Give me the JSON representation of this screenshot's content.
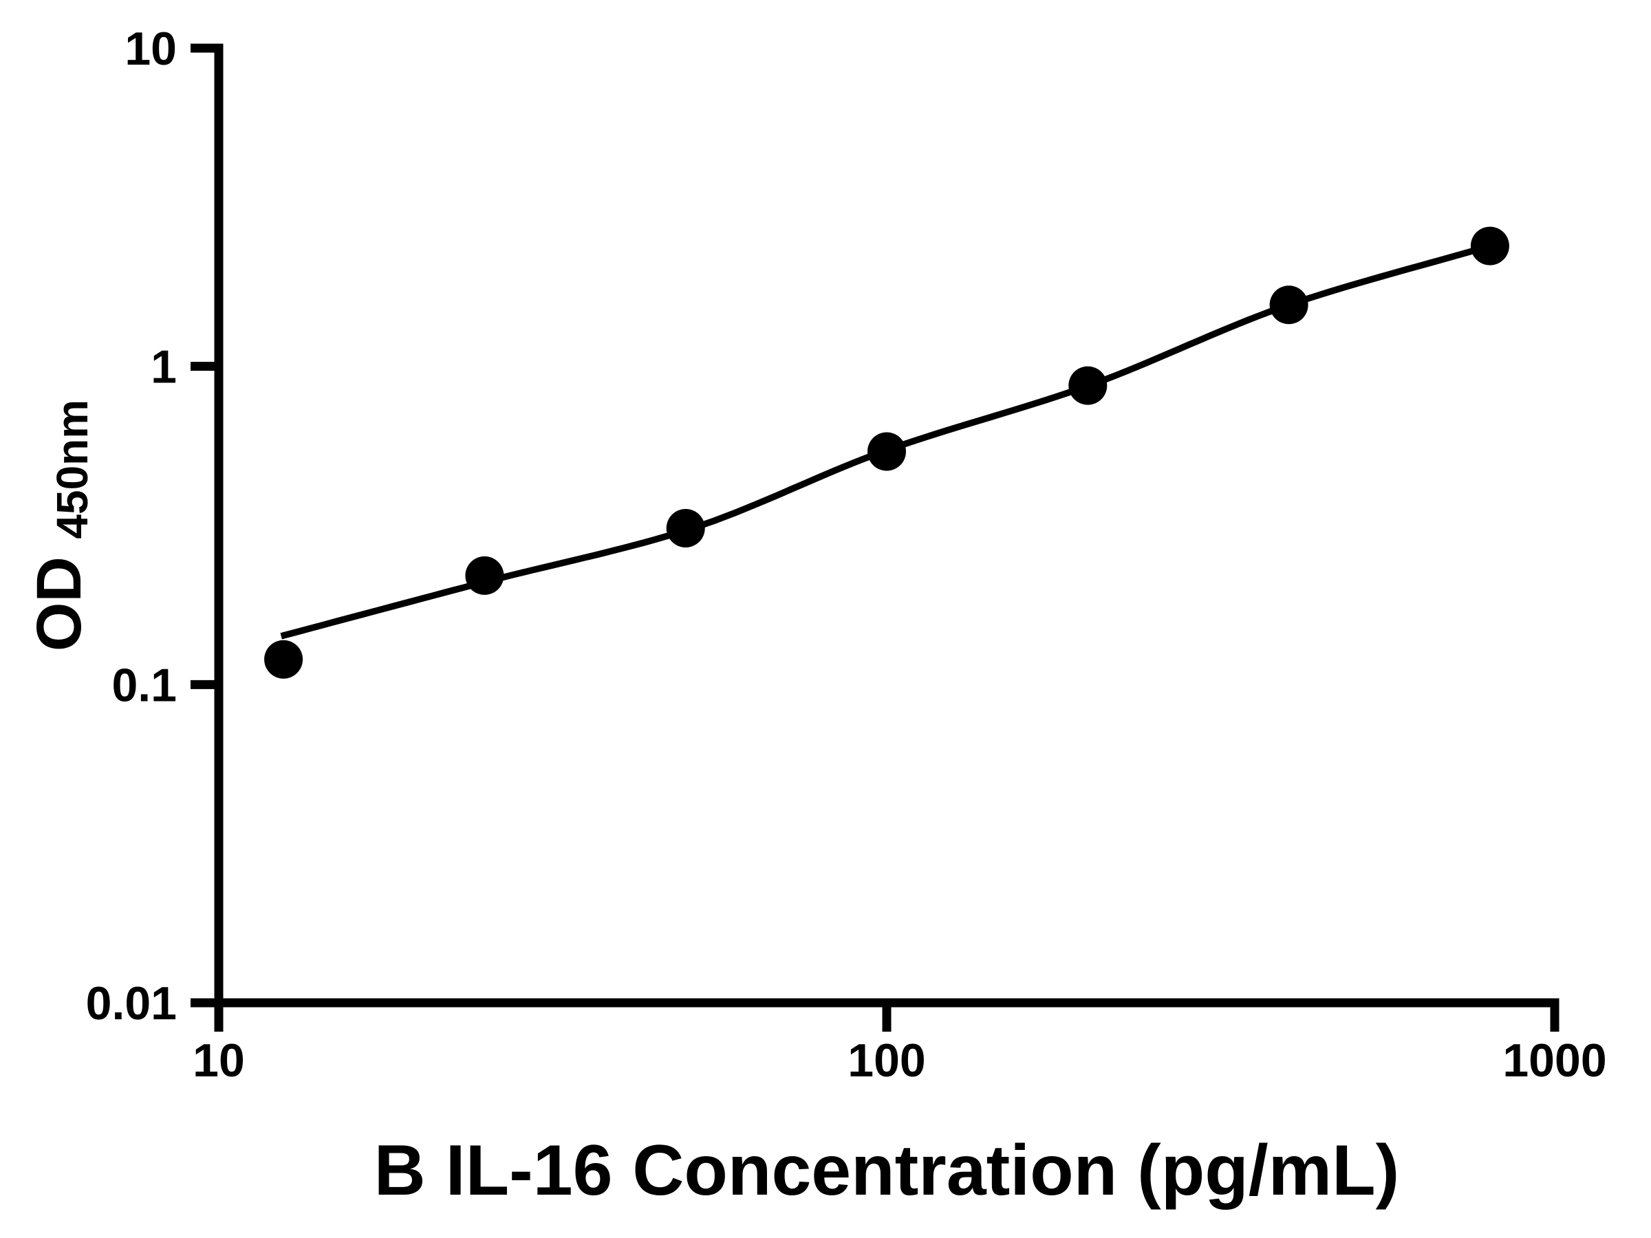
{
  "chart_data": {
    "type": "scatter",
    "title": "",
    "xlabel": "B IL-16 Concentration (pg/mL)",
    "ylabel_main": "OD",
    "ylabel_sub": "450nm",
    "x_scale": "log",
    "y_scale": "log",
    "xlim": [
      10,
      1000
    ],
    "ylim": [
      0.01,
      10
    ],
    "x_ticks": [
      {
        "value": 10,
        "label": "10"
      },
      {
        "value": 100,
        "label": "100"
      },
      {
        "value": 1000,
        "label": "1000"
      }
    ],
    "y_ticks": [
      {
        "value": 10,
        "label": "10"
      },
      {
        "value": 1,
        "label": "1"
      },
      {
        "value": 0.1,
        "label": "0.1"
      },
      {
        "value": 0.01,
        "label": "0.01"
      }
    ],
    "grid": false,
    "legend": false,
    "colors": {
      "points": "#000000",
      "curve": "#000000",
      "axis": "#000000",
      "background": "#ffffff"
    },
    "series": [
      {
        "name": "standard-points",
        "type": "scatter",
        "x": [
          12.5,
          25,
          50,
          100,
          200,
          400,
          800
        ],
        "y": [
          0.12,
          0.22,
          0.31,
          0.54,
          0.87,
          1.56,
          2.39
        ]
      },
      {
        "name": "fit-curve",
        "type": "line",
        "x": [
          12.4,
          25,
          50,
          100,
          200,
          400,
          800
        ],
        "y": [
          0.142,
          0.21,
          0.305,
          0.545,
          0.868,
          1.56,
          2.39
        ]
      }
    ]
  }
}
